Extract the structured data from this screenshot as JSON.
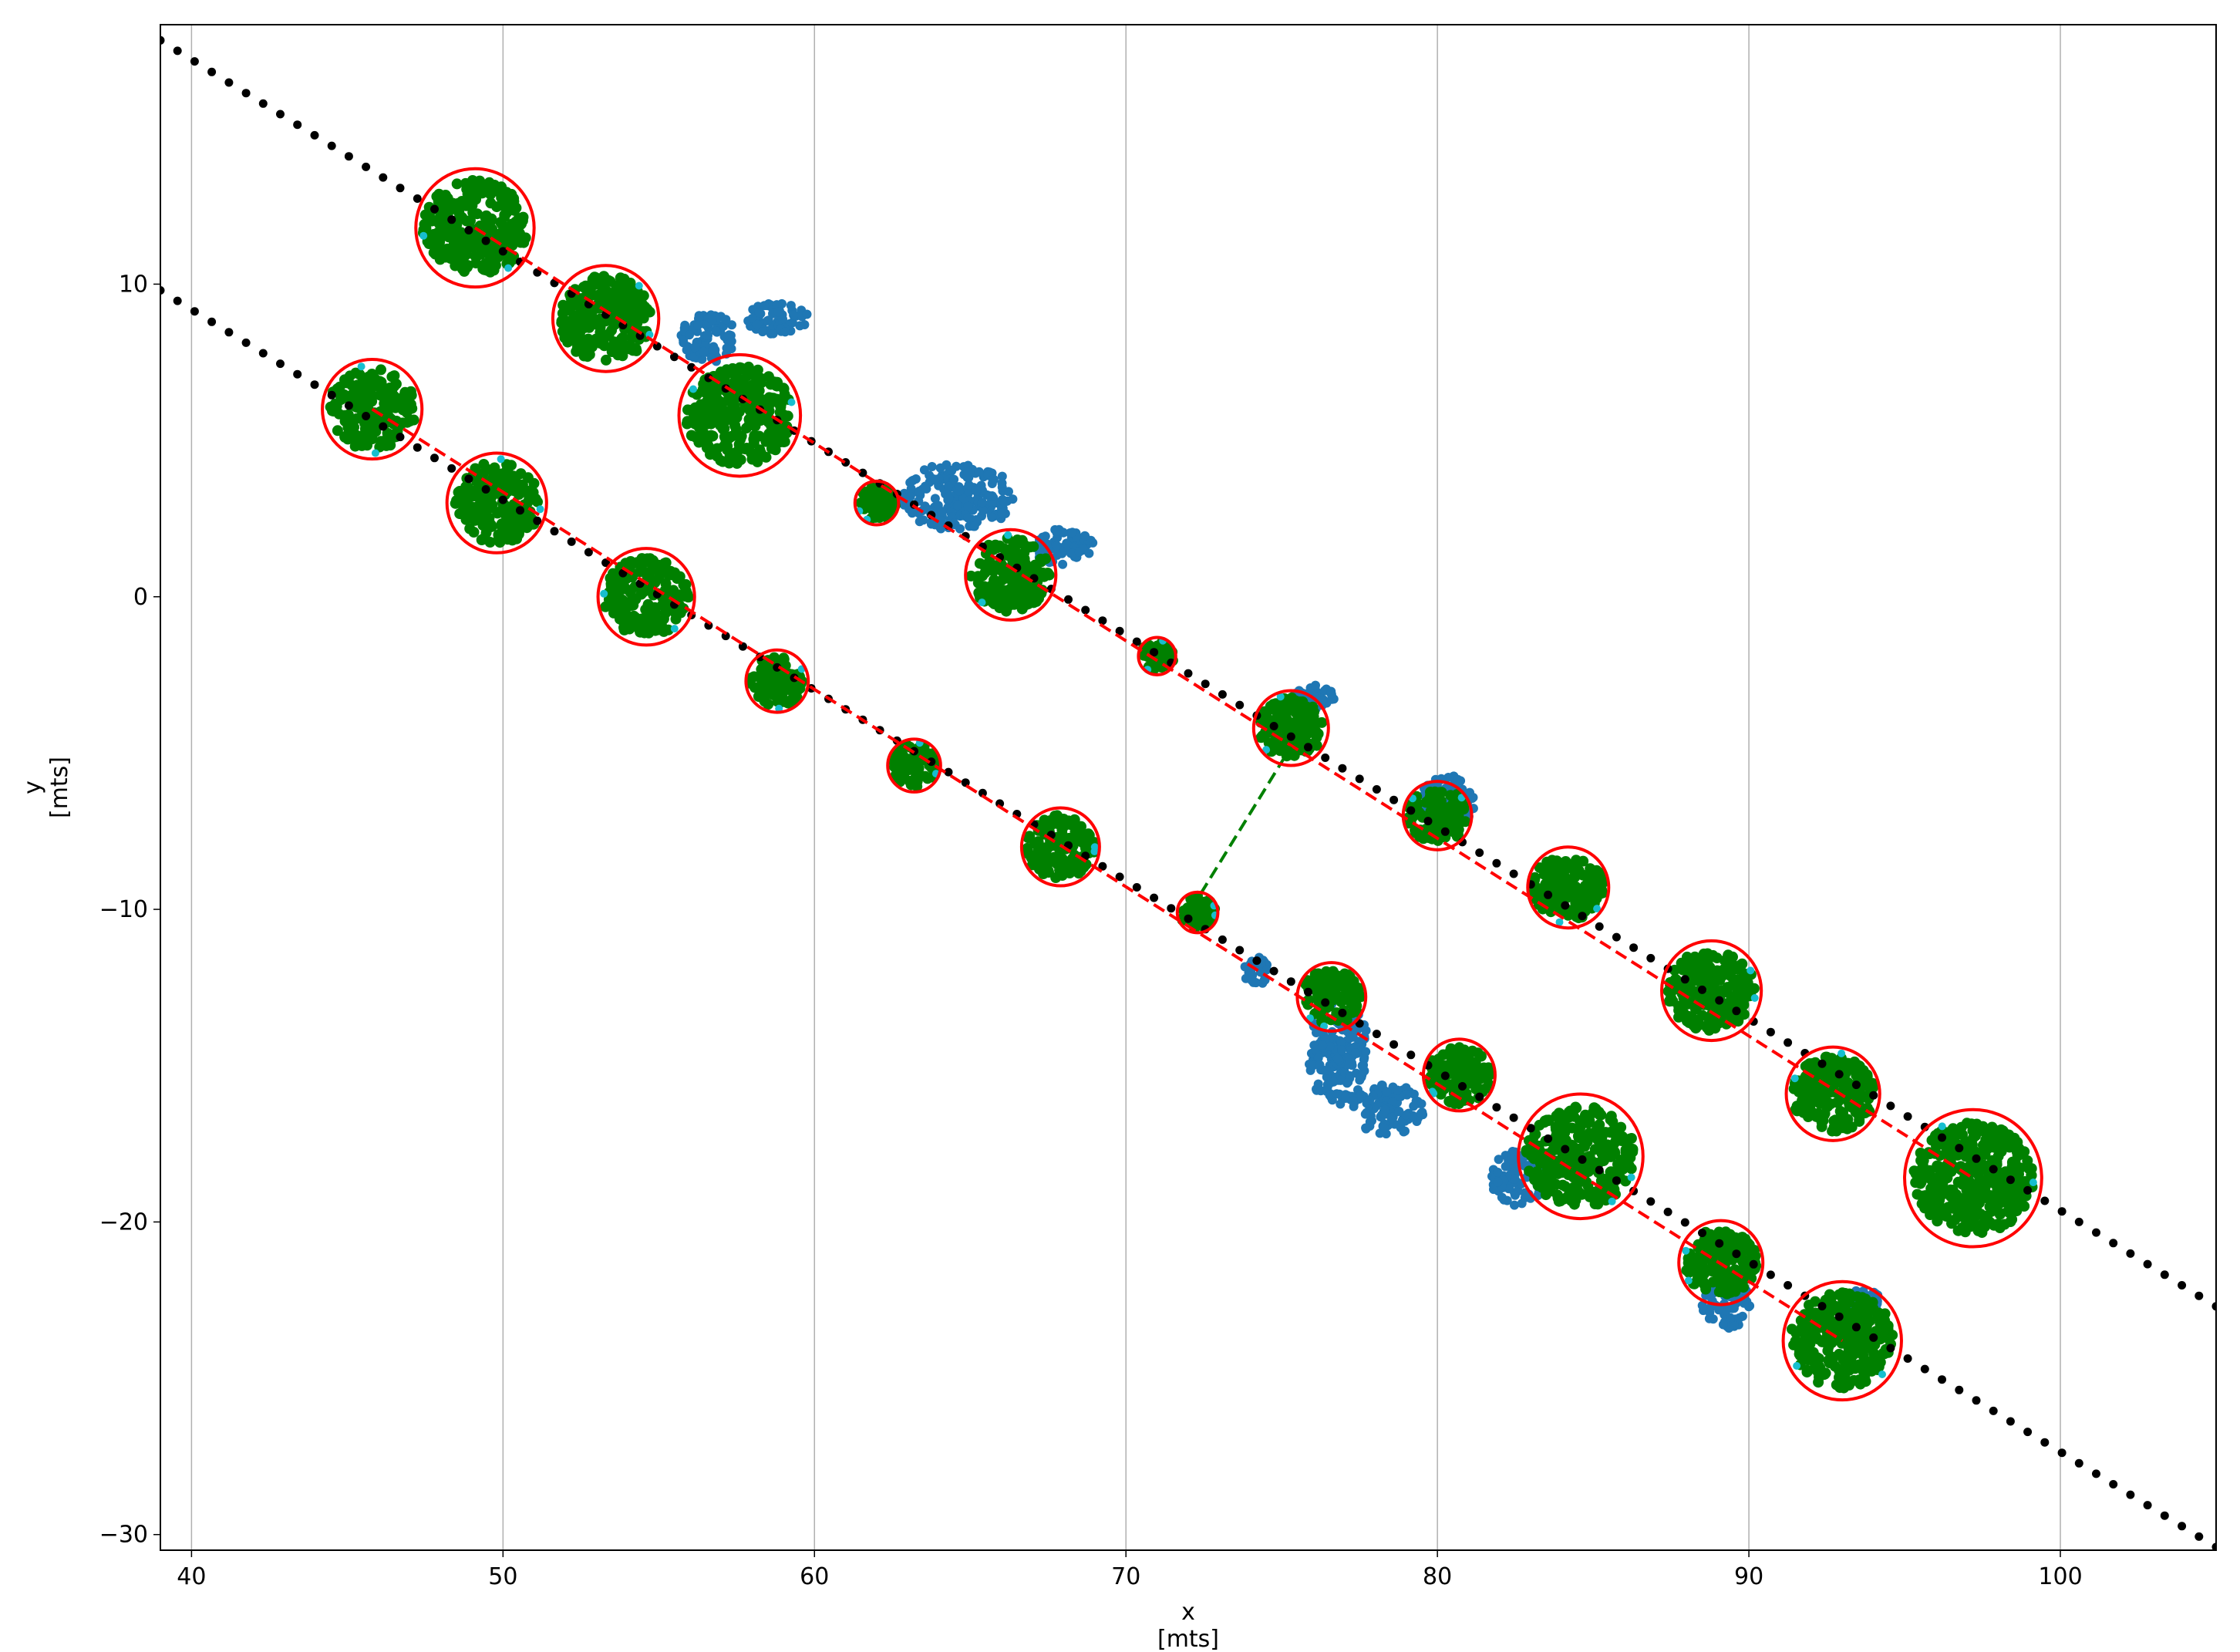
{
  "chart_data": {
    "type": "scatter",
    "xlabel": "x",
    "xunit": "[mts]",
    "ylabel": "y",
    "yunit": "[mts]",
    "xlim": [
      39,
      105
    ],
    "ylim": [
      -30.5,
      18.3
    ],
    "grid": "vertical",
    "xticks": [
      40,
      50,
      60,
      70,
      80,
      90,
      100
    ],
    "yticks": [
      10,
      0,
      -10,
      -20,
      -30
    ],
    "xtick_labels": [
      "40",
      "50",
      "60",
      "70",
      "80",
      "90",
      "100"
    ],
    "ytick_labels": [
      "10",
      "0",
      "−10",
      "−20",
      "−30"
    ],
    "reference_lines": [
      {
        "from": [
          39,
          17.8
        ],
        "to": [
          105,
          -22.7
        ]
      },
      {
        "from": [
          39,
          9.8
        ],
        "to": [
          105,
          -30.4
        ]
      }
    ],
    "fitted_lines": [
      {
        "from": [
          49.1,
          11.8
        ],
        "to": [
          97.2,
          -18.6
        ]
      },
      {
        "from": [
          45.8,
          6.0
        ],
        "to": [
          93.0,
          -23.8
        ]
      }
    ],
    "connector_line": {
      "from": [
        72.4,
        -9.5
      ],
      "to": [
        75.3,
        -4.8
      ]
    },
    "clusters": [
      {
        "center": [
          49.1,
          11.8
        ],
        "radius": 1.9
      },
      {
        "center": [
          53.3,
          8.9
        ],
        "radius": 1.7
      },
      {
        "center": [
          57.6,
          5.8
        ],
        "radius": 1.95
      },
      {
        "center": [
          62.0,
          3.0
        ],
        "radius": 0.7
      },
      {
        "center": [
          66.3,
          0.7
        ],
        "radius": 1.45
      },
      {
        "center": [
          71.0,
          -1.9
        ],
        "radius": 0.6
      },
      {
        "center": [
          75.3,
          -4.2
        ],
        "radius": 1.2
      },
      {
        "center": [
          80.0,
          -7.0
        ],
        "radius": 1.1
      },
      {
        "center": [
          84.2,
          -9.3
        ],
        "radius": 1.3
      },
      {
        "center": [
          88.8,
          -12.6
        ],
        "radius": 1.6
      },
      {
        "center": [
          92.7,
          -15.9
        ],
        "radius": 1.5
      },
      {
        "center": [
          97.2,
          -18.6
        ],
        "radius": 2.2
      },
      {
        "center": [
          45.8,
          6.0
        ],
        "radius": 1.6
      },
      {
        "center": [
          49.8,
          3.0
        ],
        "radius": 1.6
      },
      {
        "center": [
          54.6,
          0.0
        ],
        "radius": 1.55
      },
      {
        "center": [
          58.8,
          -2.7
        ],
        "radius": 1.0
      },
      {
        "center": [
          63.2,
          -5.4
        ],
        "radius": 0.85
      },
      {
        "center": [
          67.9,
          -8.0
        ],
        "radius": 1.25
      },
      {
        "center": [
          72.3,
          -10.1
        ],
        "radius": 0.65
      },
      {
        "center": [
          76.6,
          -12.8
        ],
        "radius": 1.1
      },
      {
        "center": [
          80.7,
          -15.3
        ],
        "radius": 1.15
      },
      {
        "center": [
          84.6,
          -17.9
        ],
        "radius": 2.0
      },
      {
        "center": [
          89.1,
          -21.3
        ],
        "radius": 1.35
      },
      {
        "center": [
          93.0,
          -23.8
        ],
        "radius": 1.9
      }
    ],
    "stray_points": [
      {
        "x": 56.6,
        "y": 8.3,
        "rx": 0.9,
        "ry": 0.8
      },
      {
        "x": 58.8,
        "y": 8.9,
        "rx": 1.0,
        "ry": 0.5
      },
      {
        "x": 64.6,
        "y": 3.2,
        "rx": 1.8,
        "ry": 1.1
      },
      {
        "x": 68.0,
        "y": 1.6,
        "rx": 1.0,
        "ry": 0.6
      },
      {
        "x": 76.0,
        "y": -3.2,
        "rx": 0.7,
        "ry": 0.4
      },
      {
        "x": 80.3,
        "y": -6.6,
        "rx": 0.9,
        "ry": 0.9
      },
      {
        "x": 76.8,
        "y": -14.5,
        "rx": 1.0,
        "ry": 1.8
      },
      {
        "x": 78.4,
        "y": -16.4,
        "rx": 1.2,
        "ry": 0.8
      },
      {
        "x": 82.6,
        "y": -18.6,
        "rx": 0.9,
        "ry": 0.9
      },
      {
        "x": 74.2,
        "y": -12.0,
        "rx": 0.4,
        "ry": 0.5
      },
      {
        "x": 89.3,
        "y": -22.6,
        "rx": 0.8,
        "ry": 0.8
      },
      {
        "x": 93.6,
        "y": -22.5,
        "rx": 0.6,
        "ry": 0.4
      }
    ],
    "colors": {
      "cluster_points": "#008000",
      "stray_points": "#1f77b4",
      "circles": "#ff0000",
      "fitted_lines": "#ff0000",
      "connector": "#008000",
      "reference_points": "#000000",
      "highlight_points": "#17becf",
      "grid": "#b0b0b0"
    }
  }
}
